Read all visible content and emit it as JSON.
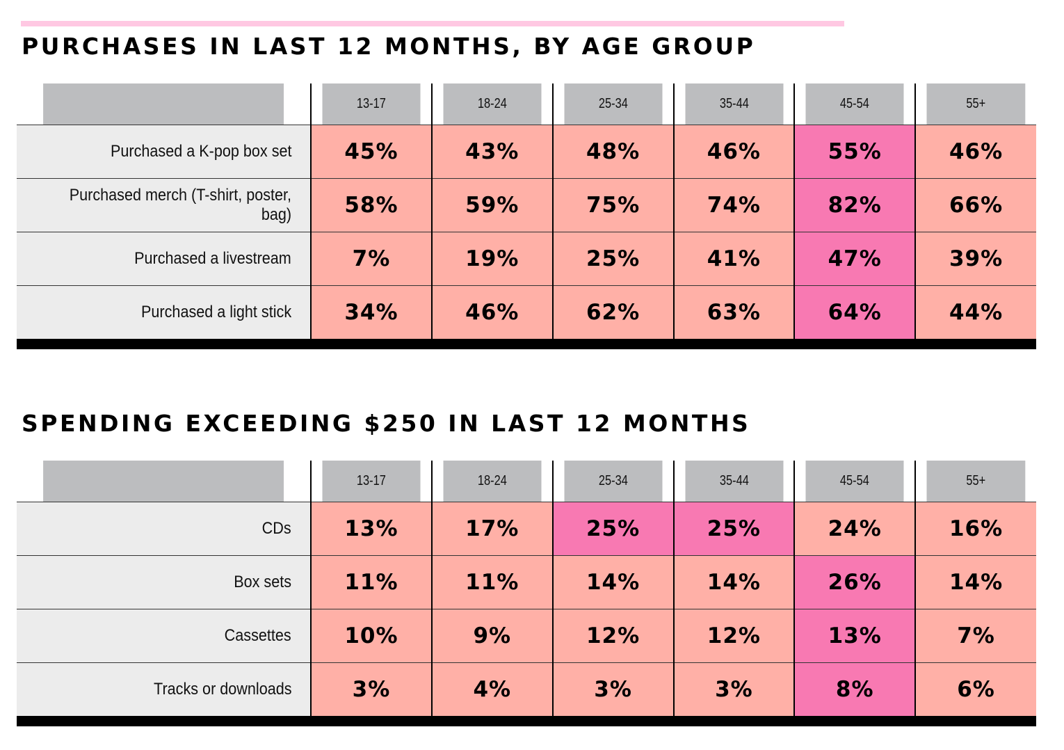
{
  "colors": {
    "accent_line": "#ffc8e2",
    "header_bg": "#bcbdbf",
    "label_bg": "#ececec",
    "cell": "#ffb0a7",
    "highlight": "#f879b2"
  },
  "chart_data": [
    {
      "type": "table",
      "title": "PURCHASES IN LAST 12 MONTHS, BY AGE GROUP",
      "columns": [
        "13-17",
        "18-24",
        "25-34",
        "35-44",
        "45-54",
        "55+"
      ],
      "rows": [
        {
          "label": "Purchased a K-pop box set",
          "values": [
            "45%",
            "43%",
            "48%",
            "46%",
            "55%",
            "46%"
          ],
          "highlight": [
            4
          ]
        },
        {
          "label": "Purchased merch (T-shirt, poster, bag)",
          "values": [
            "58%",
            "59%",
            "75%",
            "74%",
            "82%",
            "66%"
          ],
          "highlight": [
            4
          ]
        },
        {
          "label": "Purchased a livestream",
          "values": [
            "7%",
            "19%",
            "25%",
            "41%",
            "47%",
            "39%"
          ],
          "highlight": [
            4
          ]
        },
        {
          "label": "Purchased a light stick",
          "values": [
            "34%",
            "46%",
            "62%",
            "63%",
            "64%",
            "44%"
          ],
          "highlight": [
            4
          ]
        }
      ]
    },
    {
      "type": "table",
      "title": "SPENDING EXCEEDING $250 IN LAST 12 MONTHS",
      "columns": [
        "13-17",
        "18-24",
        "25-34",
        "35-44",
        "45-54",
        "55+"
      ],
      "rows": [
        {
          "label": "CDs",
          "values": [
            "13%",
            "17%",
            "25%",
            "25%",
            "24%",
            "16%"
          ],
          "highlight": [
            2,
            3
          ]
        },
        {
          "label": "Box sets",
          "values": [
            "11%",
            "11%",
            "14%",
            "14%",
            "26%",
            "14%"
          ],
          "highlight": [
            4
          ]
        },
        {
          "label": "Cassettes",
          "values": [
            "10%",
            "9%",
            "12%",
            "12%",
            "13%",
            "7%"
          ],
          "highlight": [
            4
          ]
        },
        {
          "label": "Tracks or downloads",
          "values": [
            "3%",
            "4%",
            "3%",
            "3%",
            "8%",
            "6%"
          ],
          "highlight": [
            4
          ]
        }
      ]
    }
  ]
}
